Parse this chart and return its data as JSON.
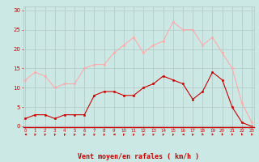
{
  "hours": [
    0,
    1,
    2,
    3,
    4,
    5,
    6,
    7,
    8,
    9,
    10,
    11,
    12,
    13,
    14,
    15,
    16,
    17,
    18,
    19,
    20,
    21,
    22,
    23
  ],
  "wind_avg": [
    2,
    3,
    3,
    2,
    3,
    3,
    3,
    8,
    9,
    9,
    8,
    8,
    10,
    11,
    13,
    12,
    11,
    7,
    9,
    14,
    12,
    5,
    1,
    0
  ],
  "wind_gust": [
    12,
    14,
    13,
    10,
    11,
    11,
    15,
    16,
    16,
    19,
    21,
    23,
    19,
    21,
    22,
    27,
    25,
    25,
    21,
    23,
    19,
    15,
    6,
    1
  ],
  "bg_color": "#cce8e4",
  "avg_color": "#cc0000",
  "gust_color": "#ffaaaa",
  "grid_color": "#b0c8c4",
  "xlabel": "Vent moyen/en rafales ( km/h )",
  "xlabel_color": "#cc0000",
  "tick_color": "#cc0000",
  "ylabel_values": [
    0,
    5,
    10,
    15,
    20,
    25,
    30
  ],
  "ylim": [
    0,
    31
  ],
  "xlim": [
    -0.2,
    23.2
  ],
  "bottom_line_color": "#cc0000"
}
